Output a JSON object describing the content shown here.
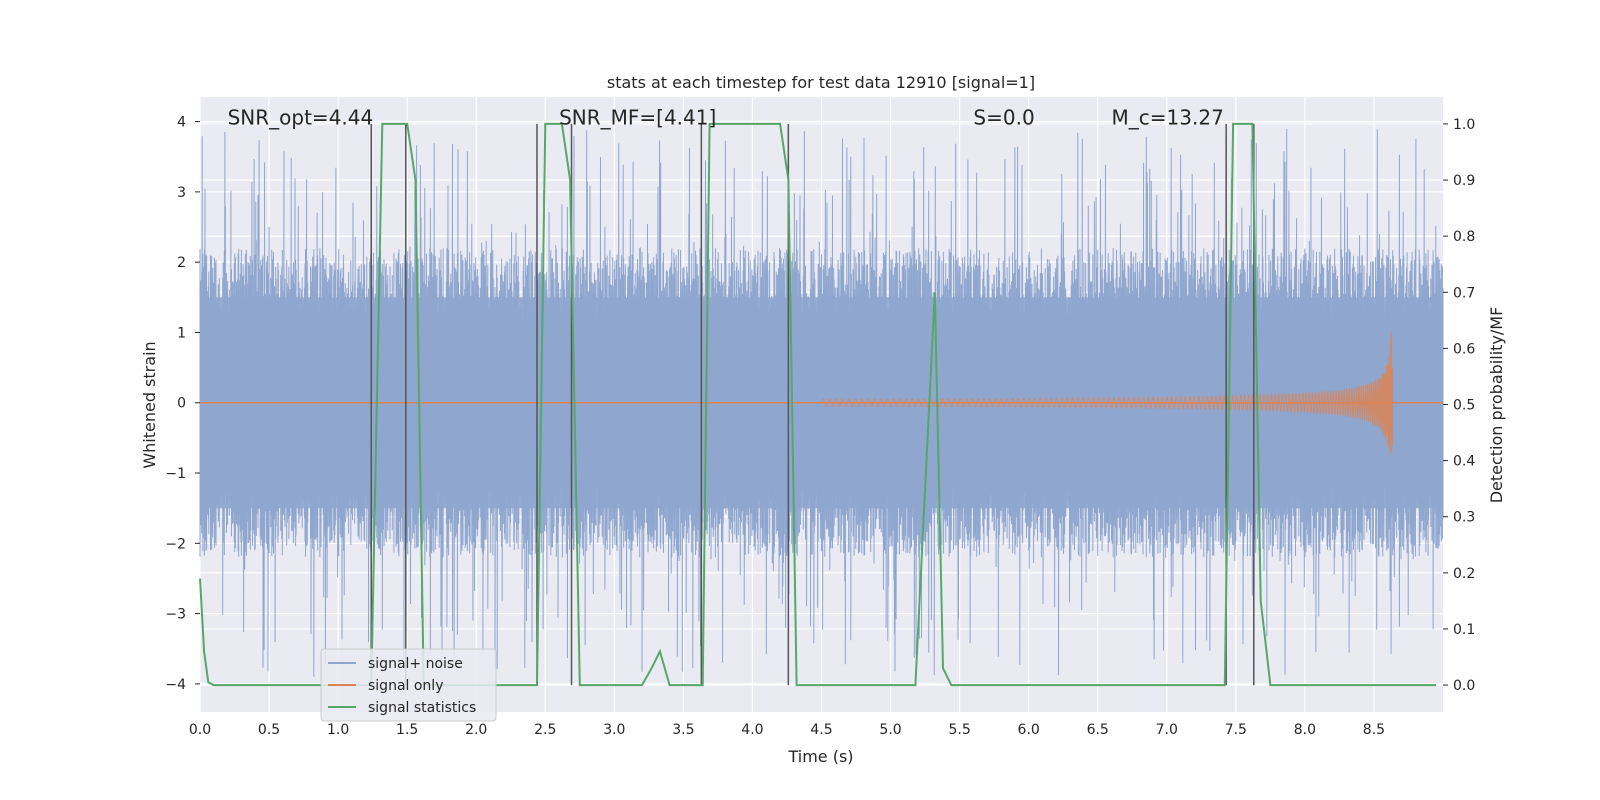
{
  "chart_data": {
    "type": "line",
    "title": "stats at each timestep for test data 12910 [signal=1]",
    "xlabel": "Time (s)",
    "ylabel_left": "Whitened strain",
    "ylabel_right": "Detection probability/MF",
    "xlim": [
      0.0,
      9.0
    ],
    "ylim_left": [
      -4.4,
      4.35
    ],
    "ylim_right": [
      -0.048,
      1.048
    ],
    "x_ticks": [
      "0.0",
      "0.5",
      "1.0",
      "1.5",
      "2.0",
      "2.5",
      "3.0",
      "3.5",
      "4.0",
      "4.5",
      "5.0",
      "5.5",
      "6.0",
      "6.5",
      "7.0",
      "7.5",
      "8.0",
      "8.5"
    ],
    "y_left_ticks": [
      "4",
      "3",
      "2",
      "1",
      "0",
      "−1",
      "−2",
      "−3",
      "−4"
    ],
    "y_right_ticks": [
      "1.0",
      "0.9",
      "0.8",
      "0.7",
      "0.6",
      "0.5",
      "0.4",
      "0.3",
      "0.2",
      "0.1",
      "0.0"
    ],
    "grid": true,
    "legend_position": "lower-left",
    "annotations": [
      {
        "text": "SNR_opt=4.44",
        "x": 0.2,
        "y": 4.0
      },
      {
        "text": "SNR_MF=[4.41]",
        "x": 2.6,
        "y": 4.0
      },
      {
        "text": "S=0.0",
        "x": 5.6,
        "y": 4.0
      },
      {
        "text": "M_c=13.27",
        "x": 6.6,
        "y": 4.0
      }
    ],
    "series": [
      {
        "name": "signal+ noise",
        "axis": "left",
        "color": "#8fa6cf",
        "kind": "noise",
        "x_range": [
          0.0,
          9.0
        ],
        "envelope_typical": 2.2,
        "envelope_peak": 3.9
      },
      {
        "name": "signal only",
        "axis": "left",
        "color": "#dd8452",
        "kind": "chirp",
        "x_start": 4.5,
        "x_end": 8.64,
        "peak_amplitude": 1.0
      },
      {
        "name": "signal statistics",
        "axis": "right",
        "color": "#55a868",
        "x": [
          0.0,
          0.03,
          0.06,
          0.1,
          1.24,
          1.28,
          1.32,
          1.5,
          1.56,
          1.62,
          2.44,
          2.5,
          2.62,
          2.68,
          2.75,
          3.2,
          3.27,
          3.33,
          3.4,
          3.64,
          3.69,
          3.76,
          4.2,
          4.26,
          4.32,
          5.18,
          5.25,
          5.32,
          5.38,
          5.44,
          7.42,
          7.48,
          7.52,
          7.62,
          7.68,
          7.75,
          8.95
        ],
        "y": [
          0.19,
          0.06,
          0.005,
          0.0,
          0.0,
          0.5,
          1.0,
          1.0,
          0.9,
          0.0,
          0.0,
          1.0,
          1.0,
          0.9,
          0.0,
          0.0,
          0.03,
          0.06,
          0.0,
          0.0,
          1.0,
          1.0,
          1.0,
          0.9,
          0.0,
          0.0,
          0.35,
          0.7,
          0.03,
          0.0,
          0.0,
          1.0,
          1.0,
          1.0,
          0.15,
          0.0,
          0.0
        ]
      }
    ],
    "vertical_lines": [
      1.24,
      1.49,
      2.44,
      2.69,
      3.63,
      4.26,
      7.43,
      7.63
    ]
  }
}
